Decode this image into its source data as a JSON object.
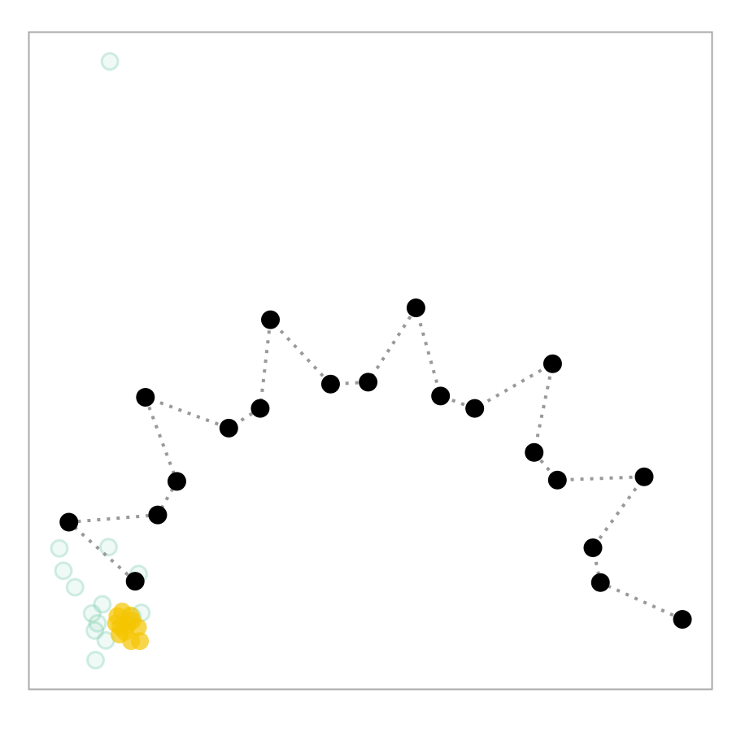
{
  "chart_data": {
    "type": "scatter",
    "title": "",
    "xlabel": "",
    "ylabel": "",
    "axes": "hidden",
    "frame": "box",
    "grid": false,
    "xlim": [
      0,
      100
    ],
    "ylim": [
      0,
      100
    ],
    "colors": {
      "frame": "#aaaaaa",
      "path_line": "#999999",
      "path_point": "#000000",
      "cloud_teal": "#7fcdb0",
      "cloud_teal_dark": "#2ea87c",
      "cloud_yellow": "#f5c400"
    },
    "series": [
      {
        "role": "path",
        "style": "black-dots-dotted-line",
        "points": [
          {
            "x": 15.5,
            "y": 16.5
          },
          {
            "x": 5.8,
            "y": 25.5
          },
          {
            "x": 18.8,
            "y": 26.6
          },
          {
            "x": 21.6,
            "y": 31.7
          },
          {
            "x": 17.0,
            "y": 44.5
          },
          {
            "x": 29.2,
            "y": 39.8
          },
          {
            "x": 33.8,
            "y": 42.8
          },
          {
            "x": 35.3,
            "y": 56.3
          },
          {
            "x": 44.1,
            "y": 46.5
          },
          {
            "x": 49.6,
            "y": 46.8
          },
          {
            "x": 56.6,
            "y": 58.1
          },
          {
            "x": 60.2,
            "y": 44.7
          },
          {
            "x": 65.2,
            "y": 42.8
          },
          {
            "x": 76.6,
            "y": 49.6
          },
          {
            "x": 73.9,
            "y": 36.1
          },
          {
            "x": 77.3,
            "y": 31.9
          },
          {
            "x": 90.0,
            "y": 32.4
          },
          {
            "x": 82.5,
            "y": 21.6
          },
          {
            "x": 83.6,
            "y": 16.3
          },
          {
            "x": 95.6,
            "y": 10.7
          }
        ]
      },
      {
        "role": "cloud",
        "style": "teal-open-circles",
        "points": [
          {
            "x": 11.8,
            "y": 95.6
          },
          {
            "x": 4.4,
            "y": 21.5
          },
          {
            "x": 11.6,
            "y": 21.7
          },
          {
            "x": 5.0,
            "y": 18.1
          },
          {
            "x": 6.7,
            "y": 15.6
          },
          {
            "x": 16.0,
            "y": 17.6
          },
          {
            "x": 10.7,
            "y": 13.0
          },
          {
            "x": 9.2,
            "y": 11.6
          },
          {
            "x": 9.6,
            "y": 9.0
          },
          {
            "x": 11.2,
            "y": 7.5
          },
          {
            "x": 9.7,
            "y": 4.5
          },
          {
            "x": 16.4,
            "y": 11.7
          },
          {
            "x": 10.0,
            "y": 10.1
          },
          {
            "x": 15.1,
            "y": 11.1
          }
        ]
      },
      {
        "role": "cluster",
        "style": "yellow-filled-circles",
        "points": [
          {
            "x": 13.6,
            "y": 11.9
          },
          {
            "x": 14.8,
            "y": 11.3
          },
          {
            "x": 12.7,
            "y": 10.1
          },
          {
            "x": 13.3,
            "y": 9.5
          },
          {
            "x": 14.4,
            "y": 9.9
          },
          {
            "x": 15.9,
            "y": 9.5
          },
          {
            "x": 13.2,
            "y": 8.4
          },
          {
            "x": 14.9,
            "y": 7.4
          },
          {
            "x": 16.2,
            "y": 7.4
          },
          {
            "x": 14.0,
            "y": 8.8
          },
          {
            "x": 15.1,
            "y": 10.5
          },
          {
            "x": 12.9,
            "y": 11.2
          }
        ]
      }
    ]
  }
}
